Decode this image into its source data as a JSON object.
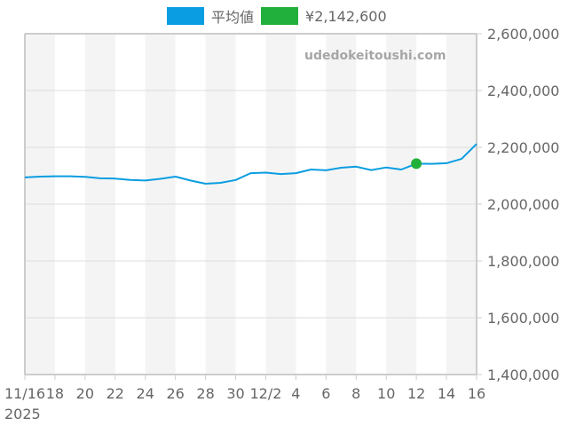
{
  "legend": {
    "items": [
      {
        "label": "平均値",
        "color": "#0a9de2"
      },
      {
        "label": "¥2,142,600",
        "color": "#22b03c"
      }
    ]
  },
  "watermark": "udedokeitoushi.com",
  "chart_data": {
    "type": "line",
    "title": "",
    "xlabel": "",
    "ylabel": "",
    "ylim": [
      1400000,
      2600000
    ],
    "yticks": [
      1400000,
      1600000,
      1800000,
      2000000,
      2200000,
      2400000,
      2600000
    ],
    "ytick_labels": [
      "1,400,000",
      "1,600,000",
      "1,800,000",
      "2,000,000",
      "2,200,000",
      "2,400,000",
      "2,600,000"
    ],
    "xtick_labels": [
      "11/16",
      "18",
      "20",
      "22",
      "24",
      "26",
      "28",
      "30",
      "12/2",
      "4",
      "6",
      "8",
      "10",
      "12",
      "14",
      "16"
    ],
    "x_year_label": "2025",
    "grid": true,
    "legend_position": "top",
    "x": [
      "2025-11-16",
      "2025-11-17",
      "2025-11-18",
      "2025-11-19",
      "2025-11-20",
      "2025-11-21",
      "2025-11-22",
      "2025-11-23",
      "2025-11-24",
      "2025-11-25",
      "2025-11-26",
      "2025-11-27",
      "2025-11-28",
      "2025-11-29",
      "2025-11-30",
      "2025-12-01",
      "2025-12-02",
      "2025-12-03",
      "2025-12-04",
      "2025-12-05",
      "2025-12-06",
      "2025-12-07",
      "2025-12-08",
      "2025-12-09",
      "2025-12-10",
      "2025-12-11",
      "2025-12-12",
      "2025-12-13",
      "2025-12-14",
      "2025-12-15",
      "2025-12-16"
    ],
    "series": [
      {
        "name": "平均値",
        "color": "#0a9de2",
        "values": [
          2094000,
          2097000,
          2098000,
          2098000,
          2096000,
          2091000,
          2090000,
          2085000,
          2083000,
          2089000,
          2097000,
          2083000,
          2072000,
          2075000,
          2085000,
          2109000,
          2111000,
          2106000,
          2109000,
          2122000,
          2119000,
          2128000,
          2132000,
          2120000,
          2129000,
          2122000,
          2142600,
          2142000,
          2144000,
          2159000,
          2212000
        ]
      },
      {
        "name": "¥2,142,600",
        "color": "#22b03c",
        "type": "scatter",
        "points": [
          {
            "x": "2025-12-12",
            "y": 2142600
          }
        ]
      }
    ]
  }
}
